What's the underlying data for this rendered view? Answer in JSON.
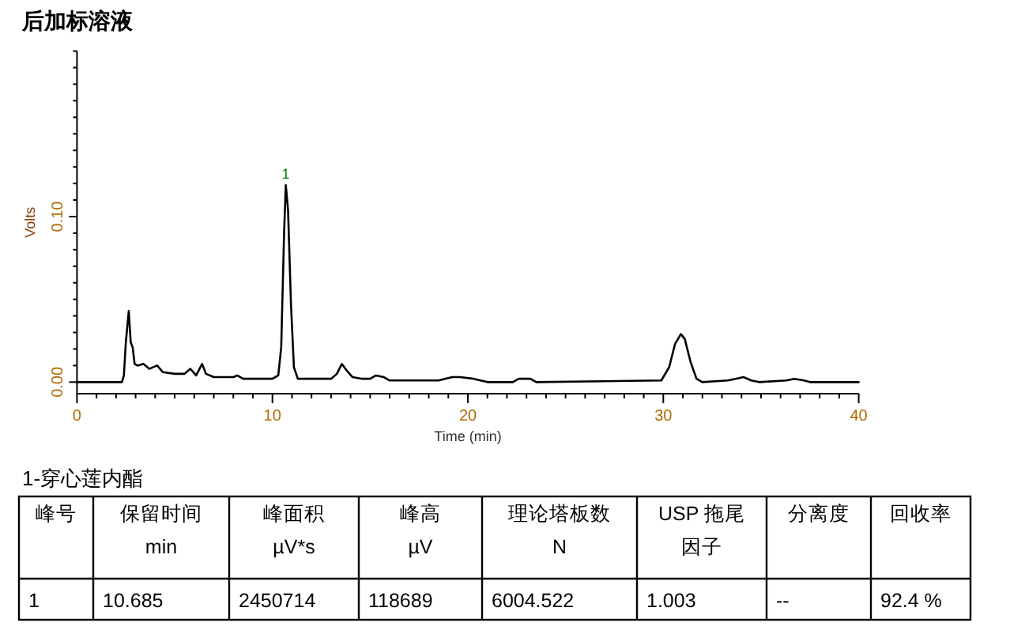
{
  "chart_data": [
    {
      "type": "line",
      "title": "后加标溶液",
      "xlabel": "Time (min)",
      "ylabel": "Volts",
      "color": "#000000",
      "grid": false,
      "xlim": [
        0,
        40
      ],
      "ylim": [
        -0.007,
        0.2
      ],
      "xticks": [
        {
          "value": 0,
          "label": "0"
        },
        {
          "value": 1,
          "label": null
        },
        {
          "value": 2,
          "label": null
        },
        {
          "value": 3,
          "label": null
        },
        {
          "value": 4,
          "label": null
        },
        {
          "value": 5,
          "label": null
        },
        {
          "value": 6,
          "label": null
        },
        {
          "value": 7,
          "label": null
        },
        {
          "value": 8,
          "label": null
        },
        {
          "value": 9,
          "label": null
        },
        {
          "value": 10,
          "label": "10"
        },
        {
          "value": 11,
          "label": null
        },
        {
          "value": 12,
          "label": null
        },
        {
          "value": 13,
          "label": null
        },
        {
          "value": 14,
          "label": null
        },
        {
          "value": 15,
          "label": null
        },
        {
          "value": 16,
          "label": null
        },
        {
          "value": 17,
          "label": null
        },
        {
          "value": 18,
          "label": null
        },
        {
          "value": 19,
          "label": null
        },
        {
          "value": 20,
          "label": "20"
        },
        {
          "value": 21,
          "label": null
        },
        {
          "value": 22,
          "label": null
        },
        {
          "value": 23,
          "label": null
        },
        {
          "value": 24,
          "label": null
        },
        {
          "value": 25,
          "label": null
        },
        {
          "value": 26,
          "label": null
        },
        {
          "value": 27,
          "label": null
        },
        {
          "value": 28,
          "label": null
        },
        {
          "value": 29,
          "label": null
        },
        {
          "value": 30,
          "label": "30"
        },
        {
          "value": 31,
          "label": null
        },
        {
          "value": 32,
          "label": null
        },
        {
          "value": 33,
          "label": null
        },
        {
          "value": 34,
          "label": null
        },
        {
          "value": 35,
          "label": null
        },
        {
          "value": 36,
          "label": null
        },
        {
          "value": 37,
          "label": null
        },
        {
          "value": 38,
          "label": null
        },
        {
          "value": 39,
          "label": null
        },
        {
          "value": 40,
          "label": "40"
        }
      ],
      "yticks": [
        {
          "value": 0,
          "label": "0.00"
        },
        {
          "value": 0.01,
          "label": null
        },
        {
          "value": 0.02,
          "label": null
        },
        {
          "value": 0.03,
          "label": null
        },
        {
          "value": 0.04,
          "label": null
        },
        {
          "value": 0.05,
          "label": null
        },
        {
          "value": 0.06,
          "label": null
        },
        {
          "value": 0.07,
          "label": null
        },
        {
          "value": 0.08,
          "label": null
        },
        {
          "value": 0.09,
          "label": null
        },
        {
          "value": 0.1,
          "label": "0.10"
        },
        {
          "value": 0.11,
          "label": null
        },
        {
          "value": 0.12,
          "label": null
        },
        {
          "value": 0.13,
          "label": null
        },
        {
          "value": 0.14,
          "label": null
        },
        {
          "value": 0.15,
          "label": null
        },
        {
          "value": 0.16,
          "label": null
        },
        {
          "value": 0.17,
          "label": null
        },
        {
          "value": 0.18,
          "label": null
        },
        {
          "value": 0.19,
          "label": null
        },
        {
          "value": 0.2,
          "label": null
        }
      ],
      "x": [
        0,
        2.3,
        2.4,
        2.5,
        2.65,
        2.75,
        2.85,
        2.95,
        3.1,
        3.4,
        3.7,
        4.1,
        4.4,
        5.0,
        5.5,
        5.8,
        6.1,
        6.4,
        6.6,
        7.0,
        8.0,
        8.2,
        8.5,
        10.0,
        10.3,
        10.45,
        10.6,
        10.685,
        10.8,
        10.95,
        11.1,
        11.3,
        13.0,
        13.3,
        13.55,
        13.8,
        14.1,
        14.6,
        15.0,
        15.3,
        15.7,
        16.0,
        18.5,
        19.2,
        19.6,
        20.3,
        21.0,
        22.3,
        22.6,
        23.2,
        23.5,
        29.9,
        30.3,
        30.6,
        30.9,
        31.1,
        31.4,
        31.7,
        32.0,
        33.3,
        33.7,
        34.1,
        34.5,
        34.9,
        36.3,
        36.7,
        37.2,
        37.5,
        40
      ],
      "values": [
        0,
        0,
        0.004,
        0.024,
        0.043,
        0.024,
        0.021,
        0.011,
        0.01,
        0.011,
        0.008,
        0.01,
        0.006,
        0.005,
        0.005,
        0.008,
        0.004,
        0.011,
        0.005,
        0.003,
        0.003,
        0.004,
        0.002,
        0.002,
        0.004,
        0.021,
        0.091,
        0.119,
        0.104,
        0.047,
        0.009,
        0.002,
        0.002,
        0.005,
        0.011,
        0.007,
        0.003,
        0.002,
        0.002,
        0.004,
        0.003,
        0.001,
        0.001,
        0.003,
        0.003,
        0.002,
        0,
        0,
        0.002,
        0.002,
        0,
        0.001,
        0.009,
        0.023,
        0.029,
        0.026,
        0.012,
        0.002,
        0,
        0.001,
        0.002,
        0.003,
        0.001,
        0,
        0.001,
        0.002,
        0.001,
        0,
        0
      ],
      "annotations": [
        {
          "text": "1",
          "x": 10.685,
          "y": 0.119
        }
      ]
    },
    {
      "type": "other",
      "title": "1-穿心莲内酯",
      "categories": [
        "峰号",
        "保留时间\nmin",
        "峰面积\nµV*s",
        "峰高\nµV",
        "理论塔板数\nN",
        "USP 拖尾因子",
        "分离度",
        "回收率"
      ],
      "annotations": [
        "1",
        "10.685",
        "2450714",
        "118689",
        "6004.522",
        "1.003",
        "--",
        "92.4 %"
      ]
    }
  ]
}
